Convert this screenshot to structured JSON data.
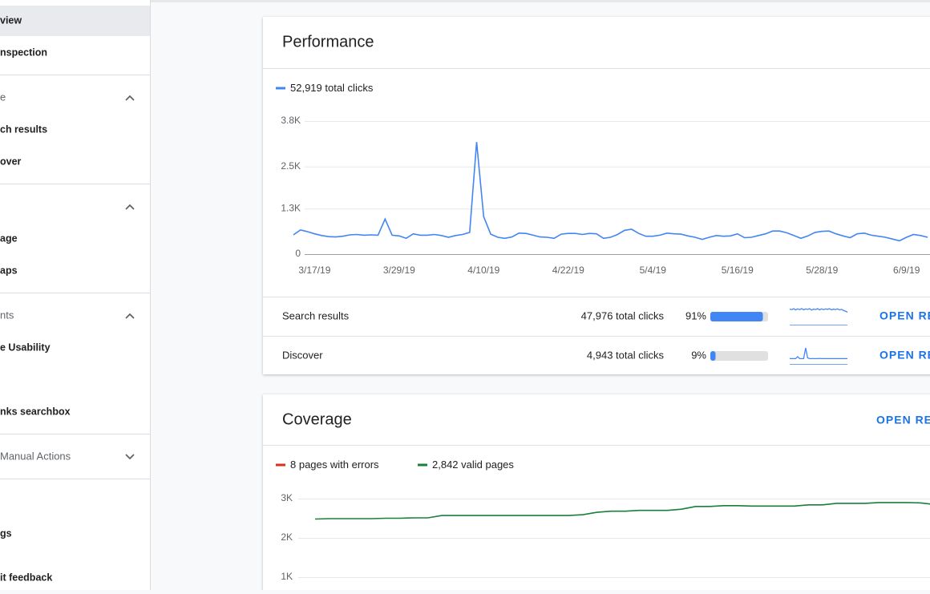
{
  "sidebar": {
    "items": [
      "view",
      "nspection",
      "e",
      "ch results",
      "over",
      "age",
      "aps",
      "nts",
      "e Usability",
      "nks searchbox",
      "Manual Actions",
      "gs",
      "it feedback"
    ]
  },
  "performance": {
    "title": "Performance",
    "chart": {
      "type": "line",
      "series": [
        {
          "name": "52,919 total clicks",
          "color": "#4285f4",
          "values": [
            550,
            690,
            640,
            580,
            530,
            500,
            490,
            510,
            550,
            560,
            540,
            550,
            540,
            1000,
            540,
            520,
            450,
            580,
            540,
            540,
            560,
            530,
            480,
            530,
            560,
            620,
            3200,
            1070,
            570,
            480,
            450,
            490,
            600,
            590,
            540,
            490,
            480,
            450,
            570,
            590,
            590,
            560,
            590,
            580,
            450,
            480,
            560,
            680,
            710,
            590,
            510,
            510,
            540,
            600,
            580,
            570,
            520,
            480,
            420,
            480,
            530,
            510,
            520,
            580,
            470,
            480,
            530,
            580,
            660,
            660,
            610,
            530,
            450,
            520,
            620,
            650,
            660,
            580,
            520,
            470,
            580,
            600,
            540,
            510,
            480,
            430,
            380,
            480,
            560,
            530,
            480
          ]
        }
      ],
      "categories": [
        null,
        null,
        null,
        "3/17/19",
        null,
        null,
        null,
        null,
        null,
        null,
        null,
        null,
        null,
        null,
        null,
        "3/29/19",
        null,
        null,
        null,
        null,
        null,
        null,
        null,
        null,
        null,
        null,
        null,
        "4/10/19",
        null,
        null,
        null,
        null,
        null,
        null,
        null,
        null,
        null,
        null,
        null,
        "4/22/19",
        null,
        null,
        null,
        null,
        null,
        null,
        null,
        null,
        null,
        null,
        null,
        "5/4/19",
        null,
        null,
        null,
        null,
        null,
        null,
        null,
        null,
        null,
        null,
        null,
        "5/16/19",
        null,
        null,
        null,
        null,
        null,
        null,
        null,
        null,
        null,
        null,
        null,
        "5/28/19",
        null,
        null,
        null,
        null,
        null,
        null,
        null,
        null,
        null,
        null,
        null,
        "6/9/19",
        null,
        null,
        null
      ],
      "ylim": [
        0,
        3800
      ],
      "yticks": [
        0,
        {
          "value": 1300,
          "label": "1.3K"
        },
        {
          "value": 2500,
          "label": "2.5K"
        },
        {
          "value": 3800,
          "label": "3.8K"
        }
      ],
      "grid": true
    },
    "rows": [
      {
        "name": "Search results",
        "clicks": "47,976 total clicks",
        "share": 91,
        "share_label": "91%",
        "trend": [
          92,
          88,
          95,
          85,
          94,
          87,
          96,
          86,
          93,
          89,
          95,
          84,
          92,
          88,
          96,
          85,
          94,
          87,
          93,
          90,
          95,
          86,
          92,
          88,
          94,
          85,
          90,
          80,
          75,
          65
        ],
        "action": "OPEN REPORT"
      },
      {
        "name": "Discover",
        "clicks": "4,943 total clicks",
        "share": 9,
        "share_label": "9%",
        "trend": [
          2,
          2,
          2,
          2,
          10,
          2,
          2,
          2,
          45,
          5,
          2,
          2,
          2,
          2,
          2,
          3,
          2,
          2,
          2,
          2,
          2,
          2,
          2,
          2,
          2,
          2,
          2,
          2,
          2,
          2
        ],
        "action": "OPEN REPORT"
      }
    ]
  },
  "coverage": {
    "title": "Coverage",
    "action": "OPEN REPORT",
    "chart": {
      "type": "line",
      "series": [
        {
          "name": "8 pages with errors",
          "color": "#d93025",
          "values": [
            8,
            8,
            8,
            8,
            8,
            8,
            8,
            8,
            8,
            8,
            8,
            8,
            8,
            8,
            8,
            8,
            8,
            8,
            8,
            8,
            8,
            8,
            8,
            8,
            8,
            8,
            8,
            8,
            8,
            8,
            8,
            8,
            8,
            8,
            8,
            8,
            8,
            8,
            8,
            8,
            8,
            8,
            8,
            8,
            8
          ]
        },
        {
          "name": "2,842 valid pages",
          "color": "#188038",
          "values": [
            2480,
            2490,
            2490,
            2490,
            2490,
            2500,
            2500,
            2510,
            2510,
            2570,
            2570,
            2570,
            2570,
            2570,
            2570,
            2570,
            2570,
            2570,
            2570,
            2590,
            2650,
            2680,
            2680,
            2700,
            2700,
            2700,
            2730,
            2800,
            2800,
            2820,
            2820,
            2810,
            2810,
            2810,
            2810,
            2840,
            2840,
            2880,
            2880,
            2880,
            2900,
            2900,
            2900,
            2890,
            2850
          ]
        }
      ],
      "ylim": [
        0,
        3000
      ],
      "yticks": [
        {
          "value": 1000,
          "label": "1K"
        },
        {
          "value": 2000,
          "label": "2K"
        },
        {
          "value": 3000,
          "label": "3K"
        }
      ],
      "grid": true
    }
  }
}
